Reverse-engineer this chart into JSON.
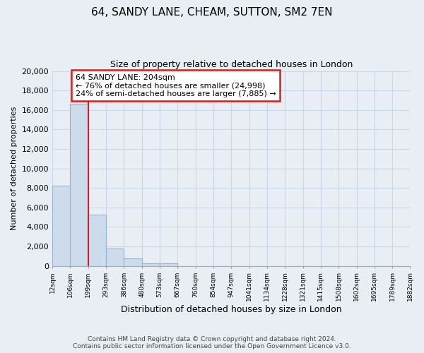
{
  "title": "64, SANDY LANE, CHEAM, SUTTON, SM2 7EN",
  "subtitle": "Size of property relative to detached houses in London",
  "xlabel": "Distribution of detached houses by size in London",
  "ylabel": "Number of detached properties",
  "bar_values": [
    8200,
    16600,
    5300,
    1800,
    750,
    250,
    250,
    0,
    0,
    0,
    0,
    0,
    0,
    0,
    0,
    0,
    0,
    0,
    0,
    0
  ],
  "bar_labels": [
    "12sqm",
    "106sqm",
    "199sqm",
    "293sqm",
    "386sqm",
    "480sqm",
    "573sqm",
    "667sqm",
    "760sqm",
    "854sqm",
    "947sqm",
    "1041sqm",
    "1134sqm",
    "1228sqm",
    "1321sqm",
    "1415sqm",
    "1508sqm",
    "1602sqm",
    "1695sqm",
    "1789sqm",
    "1882sqm"
  ],
  "bar_color": "#ccdcec",
  "bar_edge_color": "#9ab4cc",
  "annotation_box_title": "64 SANDY LANE: 204sqm",
  "annotation_line1": "← 76% of detached houses are smaller (24,998)",
  "annotation_line2": "24% of semi-detached houses are larger (7,885) →",
  "annotation_box_color": "#ffffff",
  "annotation_box_edge": "#cc2222",
  "property_line_color": "#cc2222",
  "ylim": [
    0,
    20000
  ],
  "yticks": [
    0,
    2000,
    4000,
    6000,
    8000,
    10000,
    12000,
    14000,
    16000,
    18000,
    20000
  ],
  "footer_line1": "Contains HM Land Registry data © Crown copyright and database right 2024.",
  "footer_line2": "Contains public sector information licensed under the Open Government Licence v3.0.",
  "grid_color": "#c8d8e8",
  "background_color": "#e8eef4",
  "axes_bg_color": "#e8eef4"
}
